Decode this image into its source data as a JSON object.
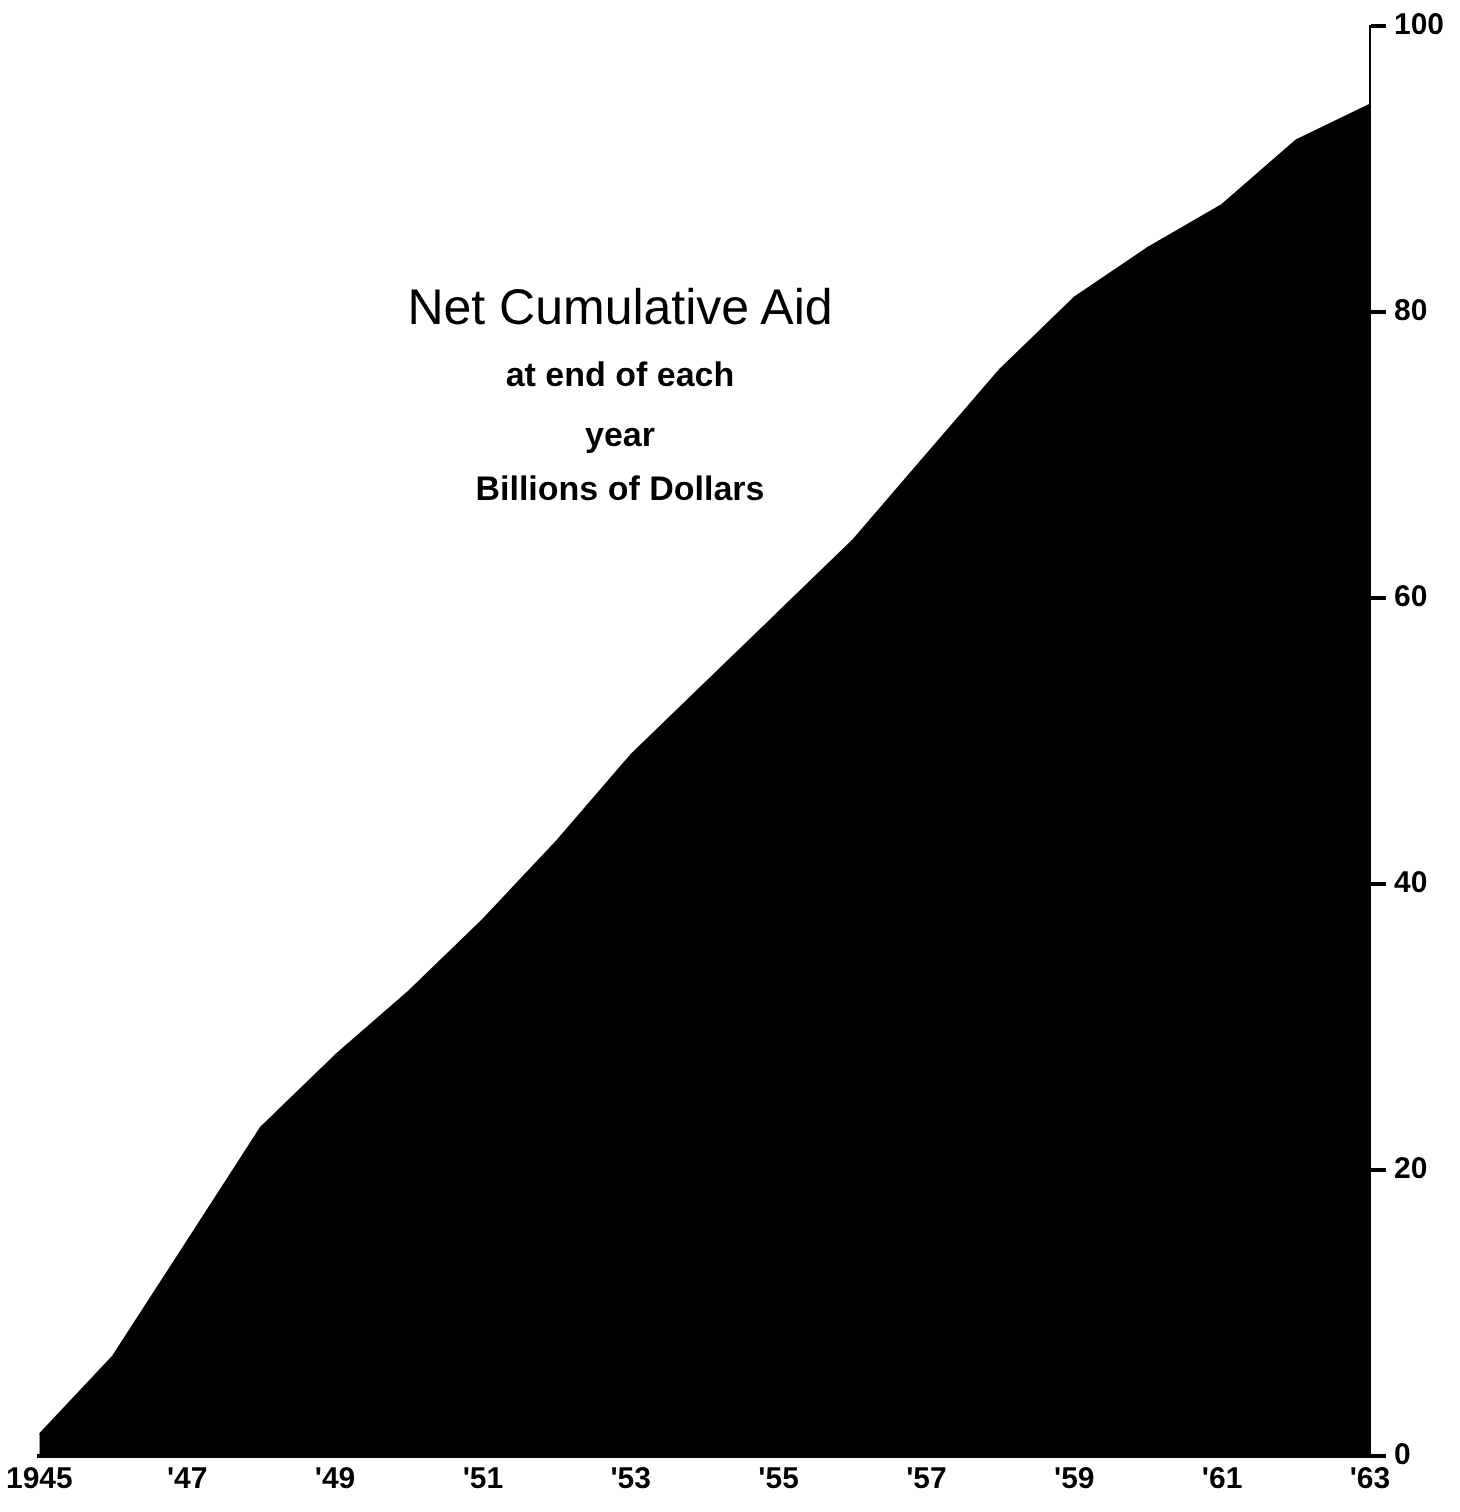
{
  "chart_data": {
    "type": "area",
    "title": "Net Cumulative Aid",
    "subtitle": "at end of each year",
    "ylabel": "Billions of Dollars",
    "x": [
      1945,
      1946,
      1947,
      1948,
      1949,
      1950,
      1951,
      1952,
      1953,
      1954,
      1955,
      1956,
      1957,
      1958,
      1959,
      1960,
      1961,
      1962,
      1963
    ],
    "series": [
      {
        "color": "#000000",
        "values": [
          1.5,
          7,
          15,
          23,
          28,
          32.5,
          37.5,
          43,
          49,
          54,
          59,
          64,
          70,
          76,
          81,
          84.5,
          87.5,
          92,
          94.5
        ]
      }
    ],
    "xlim": [
      1945,
      1963
    ],
    "xticks": [
      1945,
      {
        "value": 1947,
        "label": "'47"
      },
      {
        "value": 1949,
        "label": "'49"
      },
      {
        "value": 1951,
        "label": "'51"
      },
      {
        "value": 1953,
        "label": "'53"
      },
      {
        "value": 1955,
        "label": "'55"
      },
      {
        "value": 1957,
        "label": "'57"
      },
      {
        "value": 1959,
        "label": "'59"
      },
      {
        "value": 1961,
        "label": "'61"
      },
      {
        "value": 1963,
        "label": "'63"
      }
    ],
    "ylim": [
      0,
      100
    ],
    "yticks": [
      0,
      20,
      40,
      60,
      80,
      100
    ],
    "grid": false,
    "legend": false
  }
}
